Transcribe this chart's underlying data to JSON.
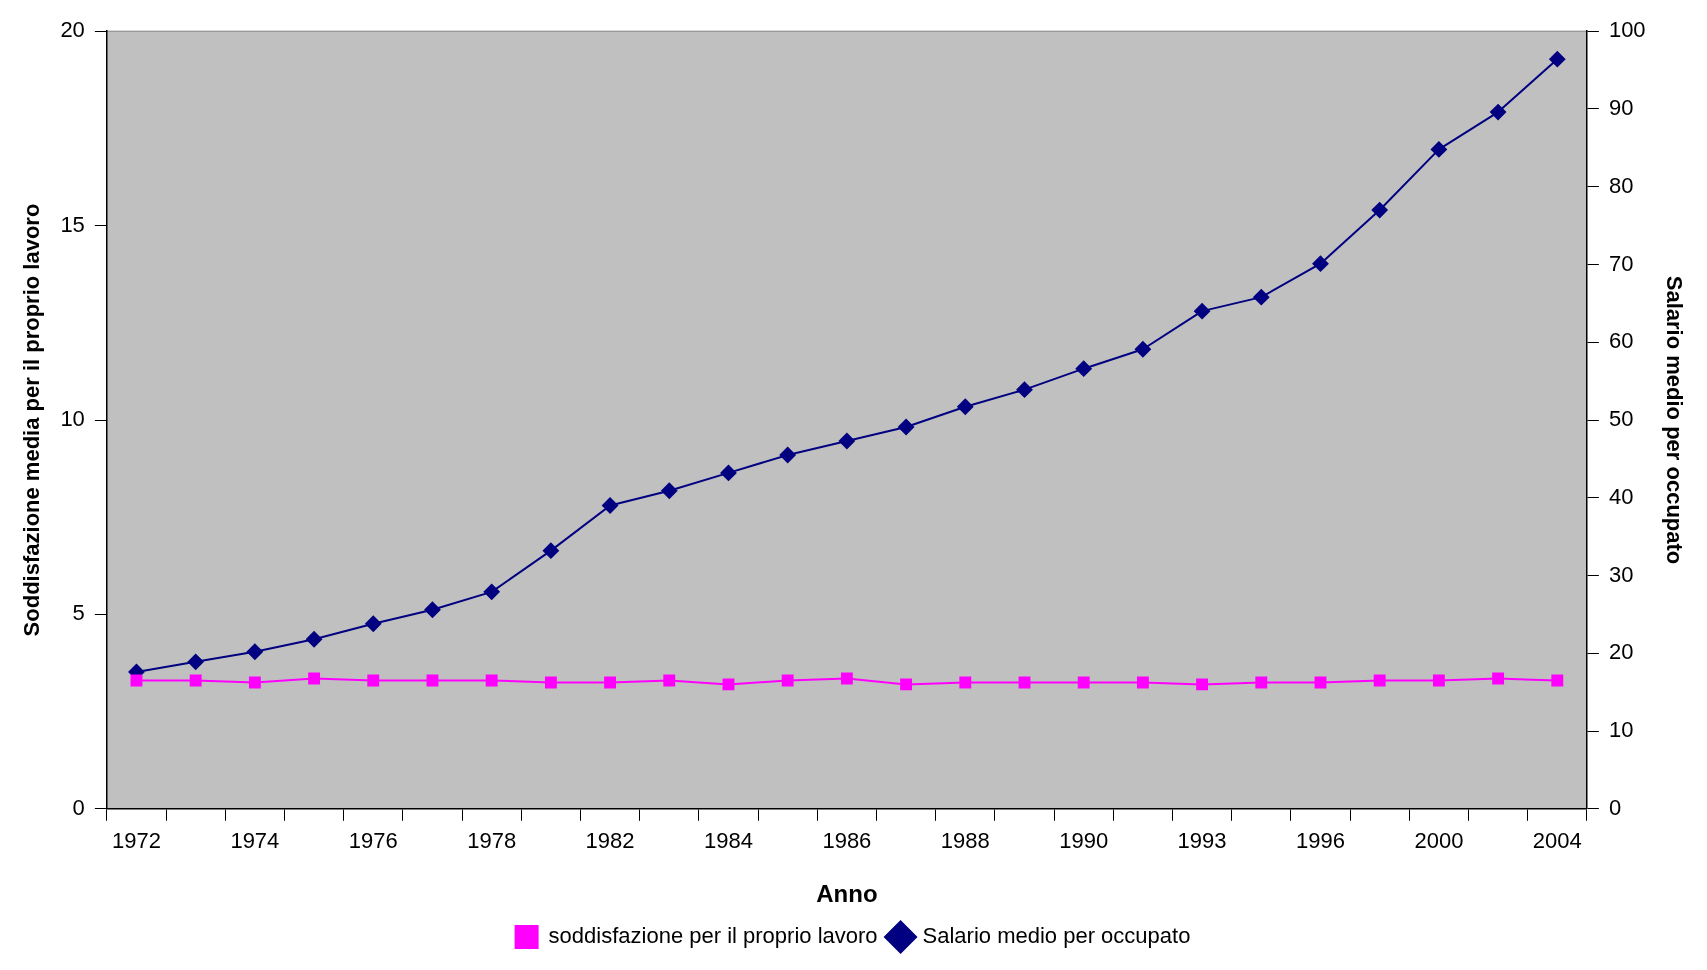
{
  "chart_data": {
    "type": "line",
    "xlabel": "Anno",
    "ylabel": "Soddisfazione media per il proprio lavoro",
    "y2label": "Salario medio per occupato",
    "categories": [
      "1972",
      null,
      "1974",
      null,
      "1976",
      null,
      "1978",
      null,
      "1982",
      null,
      "1984",
      null,
      "1986",
      null,
      "1988",
      null,
      "1990",
      null,
      "1993",
      null,
      "1996",
      null,
      "2000",
      null,
      "2004"
    ],
    "series": [
      {
        "name": "soddisfazione per il proprio lavoro",
        "color": "#ff00ff",
        "marker": "square",
        "values": [
          3.3,
          3.3,
          3.25,
          3.35,
          3.3,
          3.3,
          3.3,
          3.25,
          3.25,
          3.3,
          3.2,
          3.3,
          3.35,
          3.2,
          3.25,
          3.25,
          3.25,
          3.25,
          3.2,
          3.25,
          3.25,
          3.3,
          3.3,
          3.35,
          3.3
        ]
      },
      {
        "name": "Salario medio per occupato",
        "color": "#000080",
        "marker": "diamond",
        "axis": "y2",
        "values": [
          17.6,
          18.9,
          20.2,
          21.8,
          23.8,
          25.6,
          27.9,
          33.2,
          39.0,
          40.9,
          43.2,
          45.5,
          47.3,
          49.1,
          51.7,
          53.9,
          56.6,
          59.1,
          64.0,
          65.8,
          70.1,
          77.0,
          84.8,
          89.6,
          96.4
        ]
      }
    ],
    "ylim": [
      0,
      20
    ],
    "yticks": [
      0,
      5,
      10,
      15,
      20
    ],
    "y2lim": [
      0,
      100
    ],
    "y2ticks": [
      0,
      10,
      20,
      30,
      40,
      50,
      60,
      70,
      80,
      90,
      100
    ],
    "grid": false,
    "legend": "bottom",
    "line_style": "solid"
  }
}
